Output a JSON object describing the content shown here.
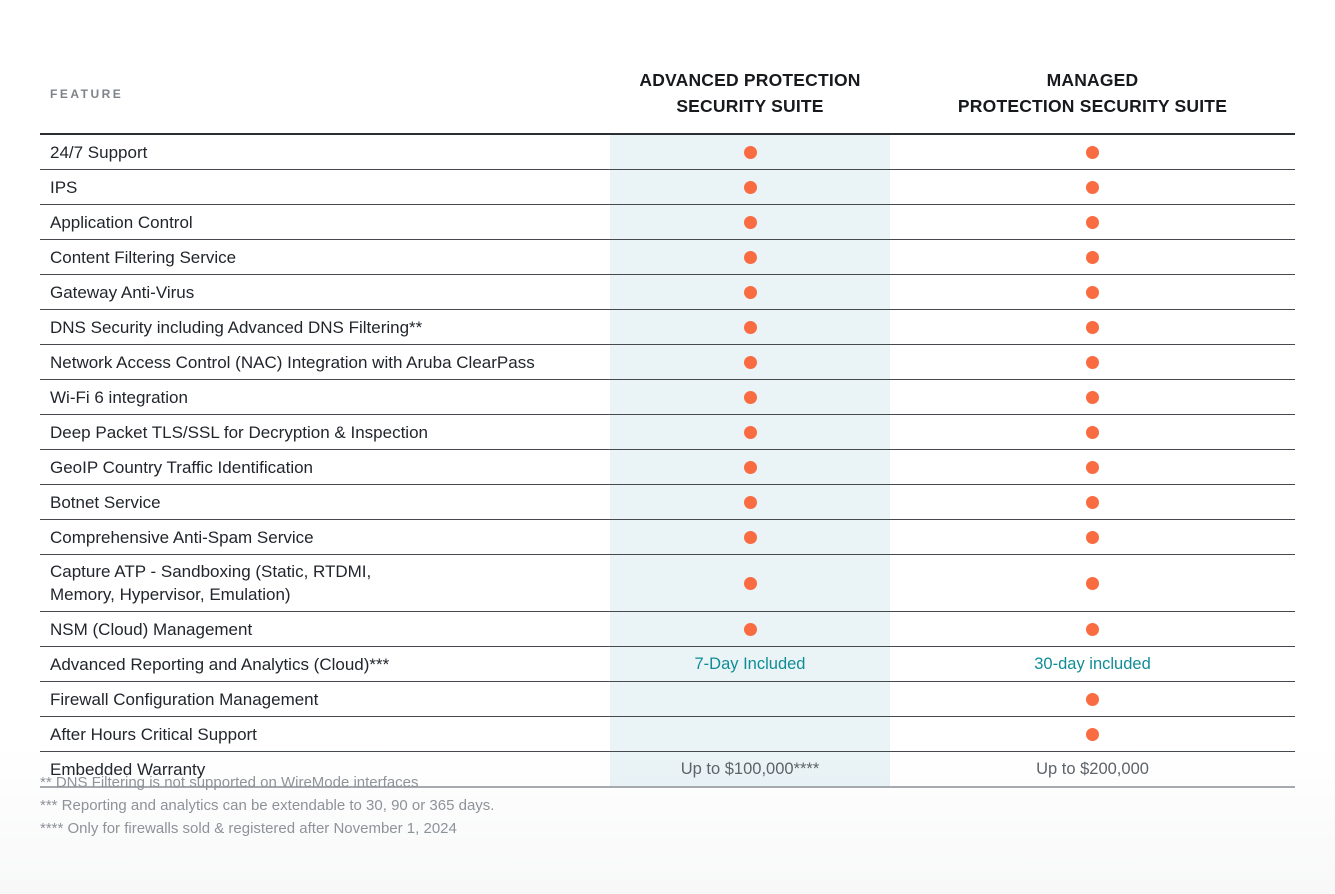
{
  "header": {
    "feature_label": "FEATURE",
    "col_advanced": "ADVANCED PROTECTION\nSECURITY SUITE",
    "col_managed": "MANAGED\nPROTECTION SECURITY SUITE"
  },
  "table": {
    "rows": [
      {
        "feature": "24/7 Support",
        "cells": [
          {
            "kind": "dot"
          },
          {
            "kind": "dot"
          }
        ]
      },
      {
        "feature": "IPS",
        "cells": [
          {
            "kind": "dot"
          },
          {
            "kind": "dot"
          }
        ]
      },
      {
        "feature": "Application Control",
        "cells": [
          {
            "kind": "dot"
          },
          {
            "kind": "dot"
          }
        ]
      },
      {
        "feature": "Content Filtering Service",
        "cells": [
          {
            "kind": "dot"
          },
          {
            "kind": "dot"
          }
        ]
      },
      {
        "feature": "Gateway Anti-Virus",
        "cells": [
          {
            "kind": "dot"
          },
          {
            "kind": "dot"
          }
        ]
      },
      {
        "feature": "DNS Security including Advanced DNS Filtering**",
        "cells": [
          {
            "kind": "dot"
          },
          {
            "kind": "dot"
          }
        ]
      },
      {
        "feature": "Network Access Control (NAC) Integration with Aruba ClearPass",
        "cells": [
          {
            "kind": "dot"
          },
          {
            "kind": "dot"
          }
        ]
      },
      {
        "feature": "Wi-Fi 6 integration",
        "cells": [
          {
            "kind": "dot"
          },
          {
            "kind": "dot"
          }
        ]
      },
      {
        "feature": "Deep Packet TLS/SSL for Decryption & Inspection",
        "cells": [
          {
            "kind": "dot"
          },
          {
            "kind": "dot"
          }
        ]
      },
      {
        "feature": "GeoIP Country Traffic Identification",
        "cells": [
          {
            "kind": "dot"
          },
          {
            "kind": "dot"
          }
        ]
      },
      {
        "feature": "Botnet Service",
        "cells": [
          {
            "kind": "dot"
          },
          {
            "kind": "dot"
          }
        ]
      },
      {
        "feature": "Comprehensive Anti-Spam Service",
        "cells": [
          {
            "kind": "dot"
          },
          {
            "kind": "dot"
          }
        ]
      },
      {
        "feature": "Capture ATP -  Sandboxing (Static, RTDMI,\nMemory, Hypervisor, Emulation)",
        "cells": [
          {
            "kind": "dot"
          },
          {
            "kind": "dot"
          }
        ]
      },
      {
        "feature": "NSM (Cloud) Management",
        "cells": [
          {
            "kind": "dot"
          },
          {
            "kind": "dot"
          }
        ]
      },
      {
        "feature": "Advanced Reporting and Analytics (Cloud)***",
        "cells": [
          {
            "kind": "text",
            "text": "7-Day Included",
            "style": "teal"
          },
          {
            "kind": "text",
            "text": "30-day included",
            "style": "teal"
          }
        ]
      },
      {
        "feature": "Firewall Configuration Management",
        "cells": [
          {
            "kind": "empty"
          },
          {
            "kind": "dot"
          }
        ]
      },
      {
        "feature": "After Hours Critical Support",
        "cells": [
          {
            "kind": "empty"
          },
          {
            "kind": "dot"
          }
        ]
      },
      {
        "feature": "Embedded Warranty",
        "cells": [
          {
            "kind": "text",
            "text": "Up to $100,000****",
            "style": "muted"
          },
          {
            "kind": "text",
            "text": "Up to $200,000",
            "style": "muted"
          }
        ]
      }
    ]
  },
  "footnotes": [
    "** DNS Filtering is not supported on WireMode interfaces",
    "*** Reporting and analytics can be extendable to 30, 90 or 365 days.",
    "**** Only for firewalls sold & registered after November 1, 2024"
  ],
  "colors": {
    "accent_orange": "#F96B40",
    "highlight_column_bg": "#EAF4F7",
    "teal_text": "#0F8D96",
    "muted_value_text": "#5D6369",
    "row_border": "#46494E",
    "footnote_gray": "#8E9399"
  },
  "icons": {
    "included_dot": "filled-circle"
  }
}
